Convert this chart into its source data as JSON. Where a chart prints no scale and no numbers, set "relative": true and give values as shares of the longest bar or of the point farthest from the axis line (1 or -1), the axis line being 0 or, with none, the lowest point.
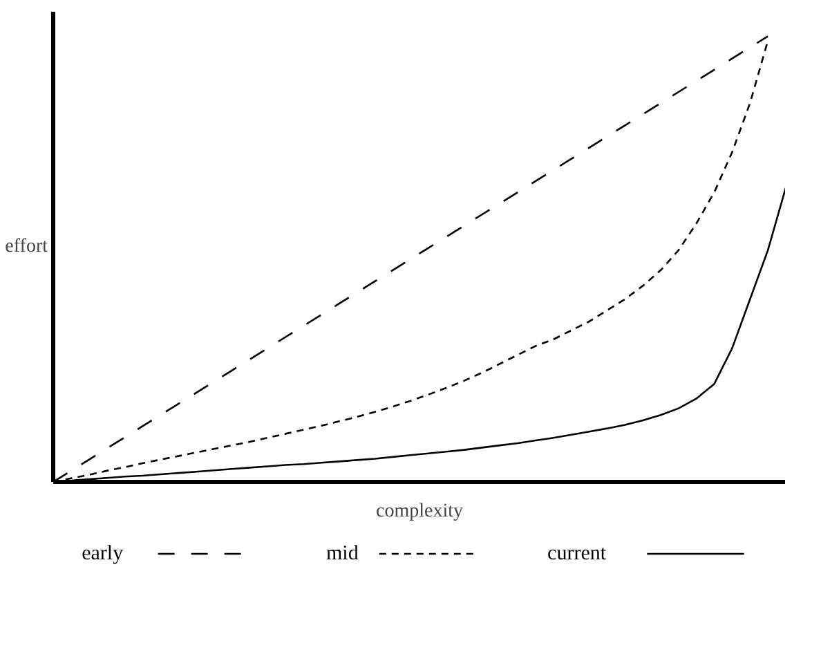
{
  "chart_data": {
    "type": "line",
    "relative": true,
    "xlabel": "complexity",
    "ylabel": "effort",
    "legend": "bottom",
    "tick_labels": false,
    "categories": [
      null,
      null,
      null,
      null,
      null,
      null,
      null,
      null,
      null,
      null,
      null,
      null,
      null,
      null,
      null,
      null,
      null,
      null,
      null,
      null,
      null,
      null,
      null,
      null,
      null,
      null,
      null,
      null,
      null,
      null,
      null,
      null,
      null,
      null,
      null,
      null,
      null,
      null,
      null,
      null,
      null,
      null
    ],
    "series": [
      {
        "name": "early",
        "color": "#000000",
        "line_style": "dashed",
        "values": [
          0,
          0.025,
          0.05,
          0.075,
          0.1,
          0.125,
          0.15,
          0.175,
          0.2,
          0.225,
          0.25,
          0.275,
          0.3,
          0.325,
          0.35,
          0.375,
          0.4,
          0.425,
          0.45,
          0.475,
          0.5,
          0.525,
          0.55,
          0.575,
          0.6,
          0.625,
          0.65,
          0.675,
          0.7,
          0.725,
          0.75,
          0.775,
          0.8,
          0.825,
          0.85,
          0.875,
          0.9,
          0.925,
          0.95,
          0.975,
          1,
          null
        ]
      },
      {
        "name": "mid",
        "color": "#000000",
        "line_style": "dotted",
        "values": [
          0,
          0.008,
          0.016,
          0.025,
          0.033,
          0.042,
          0.05,
          0.058,
          0.066,
          0.074,
          0.082,
          0.09,
          0.099,
          0.108,
          0.117,
          0.126,
          0.136,
          0.146,
          0.157,
          0.169,
          0.182,
          0.196,
          0.211,
          0.227,
          0.245,
          0.265,
          0.285,
          0.305,
          0.32,
          0.34,
          0.36,
          0.385,
          0.41,
          0.44,
          0.475,
          0.52,
          0.58,
          0.65,
          0.74,
          0.85,
          0.99,
          null
        ]
      },
      {
        "name": "current",
        "color": "#000000",
        "line_style": "solid",
        "values": [
          0,
          0.003,
          0.006,
          0.009,
          0.012,
          0.014,
          0.017,
          0.02,
          0.023,
          0.026,
          0.029,
          0.032,
          0.035,
          0.038,
          0.04,
          0.043,
          0.046,
          0.049,
          0.052,
          0.056,
          0.06,
          0.064,
          0.068,
          0.072,
          0.077,
          0.082,
          0.087,
          0.093,
          0.099,
          0.106,
          0.113,
          0.12,
          0.128,
          0.138,
          0.15,
          0.165,
          0.187,
          0.22,
          0.3,
          0.41,
          0.52,
          0.66
        ]
      }
    ]
  }
}
